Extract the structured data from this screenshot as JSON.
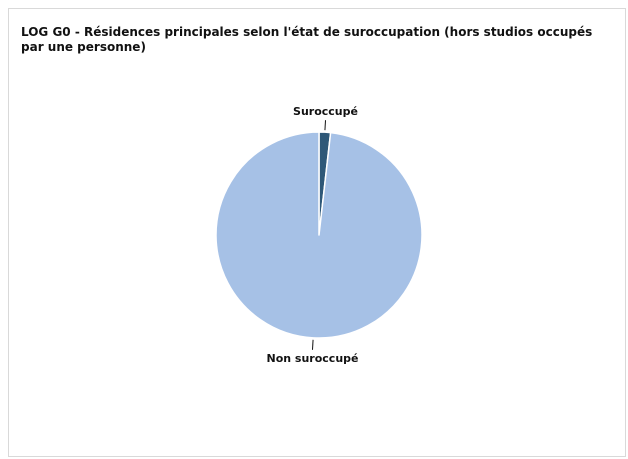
{
  "chart_data": {
    "type": "pie",
    "title": "LOG G0 - Résidences principales selon l'état de suroccupation (hors studios occupés par une personne)",
    "slices": [
      {
        "label": "Suroccupé",
        "value": 1.8,
        "color": "#2e5878"
      },
      {
        "label": "Non suroccupé",
        "value": 98.2,
        "color": "#a6c1e6"
      }
    ],
    "start_angle_deg": 0,
    "direction": "clockwise",
    "legend": "none",
    "labels": "outside"
  }
}
